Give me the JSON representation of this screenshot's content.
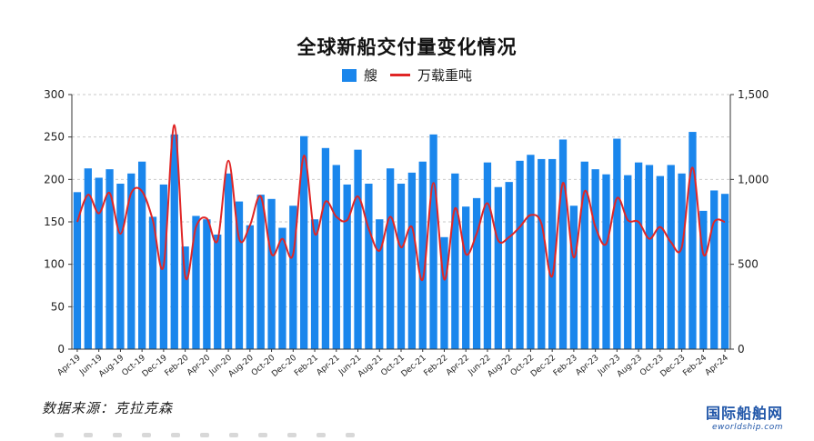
{
  "title": "全球新船交付量变化情况",
  "legend": {
    "bar_label": "艘",
    "line_label": "万载重吨"
  },
  "source": "数据来源：克拉克森",
  "logo": {
    "main": "国际船舶网",
    "sub": "eworldship.com"
  },
  "colors": {
    "bar": "#1a86ec",
    "line": "#e02626"
  },
  "chart_data": {
    "type": "bar",
    "title": "全球新船交付量变化情况",
    "categories": [
      "Apr-19",
      "May-19",
      "Jun-19",
      "Jul-19",
      "Aug-19",
      "Sep-19",
      "Oct-19",
      "Nov-19",
      "Dec-19",
      "Jan-20",
      "Feb-20",
      "Mar-20",
      "Apr-20",
      "May-20",
      "Jun-20",
      "Jul-20",
      "Aug-20",
      "Sep-20",
      "Oct-20",
      "Nov-20",
      "Dec-20",
      "Jan-21",
      "Feb-21",
      "Mar-21",
      "Apr-21",
      "May-21",
      "Jun-21",
      "Jul-21",
      "Aug-21",
      "Sep-21",
      "Oct-21",
      "Nov-21",
      "Dec-21",
      "Jan-22",
      "Feb-22",
      "Mar-22",
      "Apr-22",
      "May-22",
      "Jun-22",
      "Jul-22",
      "Aug-22",
      "Sep-22",
      "Oct-22",
      "Nov-22",
      "Dec-22",
      "Jan-23",
      "Feb-23",
      "Mar-23",
      "Apr-23",
      "May-23",
      "Jun-23",
      "Jul-23",
      "Aug-23",
      "Sep-23",
      "Oct-23",
      "Nov-23",
      "Dec-23",
      "Jan-24",
      "Feb-24",
      "Mar-24",
      "Apr-24"
    ],
    "tick_labels": [
      "Apr-19",
      "Jun-19",
      "Aug-19",
      "Oct-19",
      "Dec-19",
      "Feb-20",
      "Apr-20",
      "Jun-20",
      "Aug-20",
      "Oct-20",
      "Dec-20",
      "Feb-21",
      "Apr-21",
      "Jun-21",
      "Aug-21",
      "Oct-21",
      "Dec-21",
      "Feb-22",
      "Apr-22",
      "Jun-22",
      "Aug-22",
      "Oct-22",
      "Dec-22",
      "Feb-23",
      "Apr-23",
      "Jun-23",
      "Aug-23",
      "Oct-23",
      "Dec-23",
      "Feb-24",
      "Apr-24"
    ],
    "series": [
      {
        "name": "艘",
        "type": "bar",
        "axis": "left",
        "values": [
          185,
          213,
          202,
          212,
          195,
          207,
          221,
          156,
          194,
          253,
          121,
          157,
          153,
          135,
          207,
          174,
          146,
          182,
          177,
          143,
          169,
          251,
          153,
          237,
          217,
          194,
          235,
          195,
          153,
          213,
          195,
          208,
          221,
          253,
          132,
          207,
          168,
          178,
          220,
          191,
          197,
          222,
          229,
          224,
          224,
          247,
          169,
          221,
          212,
          206,
          248,
          205,
          220,
          217,
          204,
          217,
          207,
          256,
          163,
          187,
          183
        ]
      },
      {
        "name": "万载重吨",
        "type": "line",
        "axis": "right",
        "values": [
          750,
          910,
          800,
          920,
          680,
          920,
          930,
          760,
          490,
          1320,
          430,
          720,
          770,
          640,
          1110,
          650,
          730,
          900,
          560,
          650,
          560,
          1140,
          680,
          870,
          780,
          760,
          900,
          710,
          580,
          780,
          600,
          720,
          410,
          980,
          410,
          830,
          560,
          680,
          860,
          640,
          660,
          720,
          790,
          740,
          430,
          980,
          540,
          930,
          720,
          620,
          890,
          760,
          750,
          650,
          720,
          630,
          600,
          1070,
          560,
          750,
          750
        ]
      }
    ],
    "y_left": {
      "min": 0,
      "max": 300,
      "ticks": [
        "0",
        "50",
        "100",
        "150",
        "200",
        "250",
        "300"
      ]
    },
    "y_right": {
      "min": 0,
      "max": 1500,
      "ticks": [
        "0",
        "500",
        "1,000",
        "1,500"
      ]
    },
    "grid": "horizontal dashed",
    "legend_position": "top-center"
  }
}
